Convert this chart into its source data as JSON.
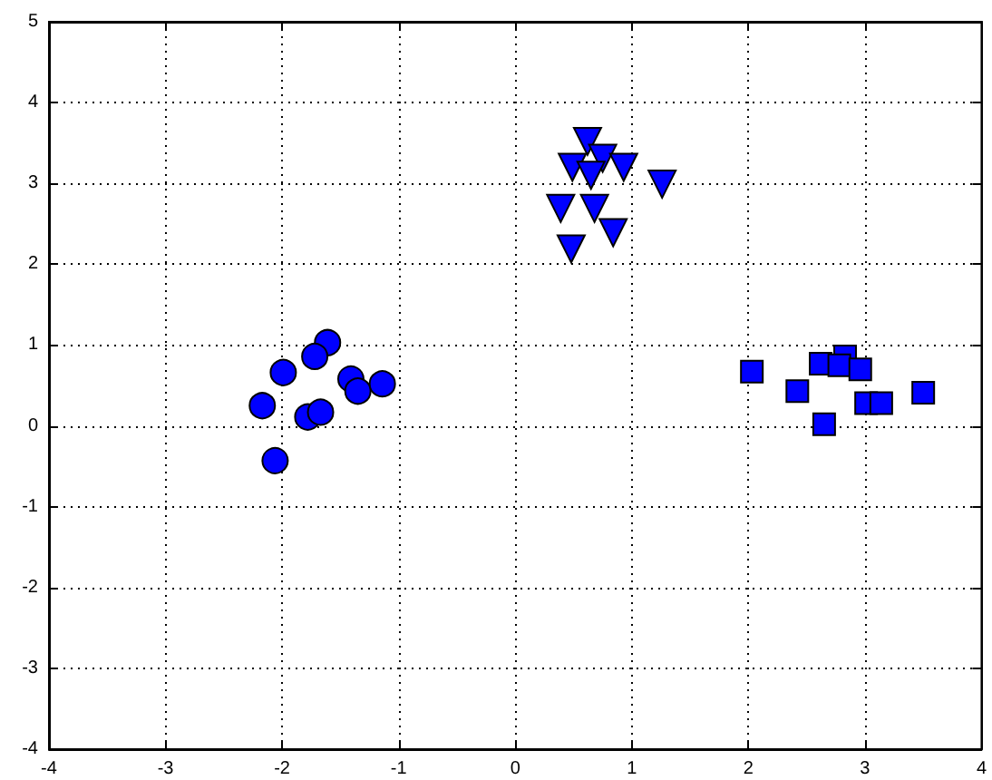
{
  "chart_data": {
    "type": "scatter",
    "series": [
      {
        "color": "#0000ff",
        "marker": "circle",
        "x": [
          -1.61,
          -1.72,
          -1.99,
          -2.17,
          -2.06,
          -1.78,
          -1.67,
          -1.41,
          -1.35,
          -1.14
        ],
        "values": [
          1.03,
          0.86,
          0.66,
          0.25,
          -0.43,
          0.11,
          0.17,
          0.58,
          0.43,
          0.52
        ]
      },
      {
        "color": "#0000ff",
        "marker": "triangle",
        "x": [
          0.62,
          0.75,
          0.49,
          0.65,
          0.93,
          1.26,
          0.39,
          0.68,
          0.84,
          0.48
        ],
        "values": [
          3.52,
          3.31,
          3.2,
          3.1,
          3.2,
          2.99,
          2.69,
          2.69,
          2.39,
          2.19
        ]
      },
      {
        "color": "#0000ff",
        "marker": "square",
        "x": [
          2.03,
          2.42,
          2.62,
          2.83,
          2.78,
          2.96,
          2.65,
          3.01,
          3.14,
          3.5
        ],
        "values": [
          0.67,
          0.43,
          0.77,
          0.86,
          0.75,
          0.7,
          0.02,
          0.28,
          0.28,
          0.41
        ]
      }
    ],
    "xlim": [
      -4,
      4
    ],
    "xticks": [
      -4,
      -3,
      -2,
      -1,
      0,
      1,
      2,
      3,
      4
    ],
    "ylim": [
      -4,
      5
    ],
    "yticks": [
      -4,
      -3,
      -2,
      -1,
      0,
      1,
      2,
      3,
      4,
      5
    ],
    "grid": true
  }
}
